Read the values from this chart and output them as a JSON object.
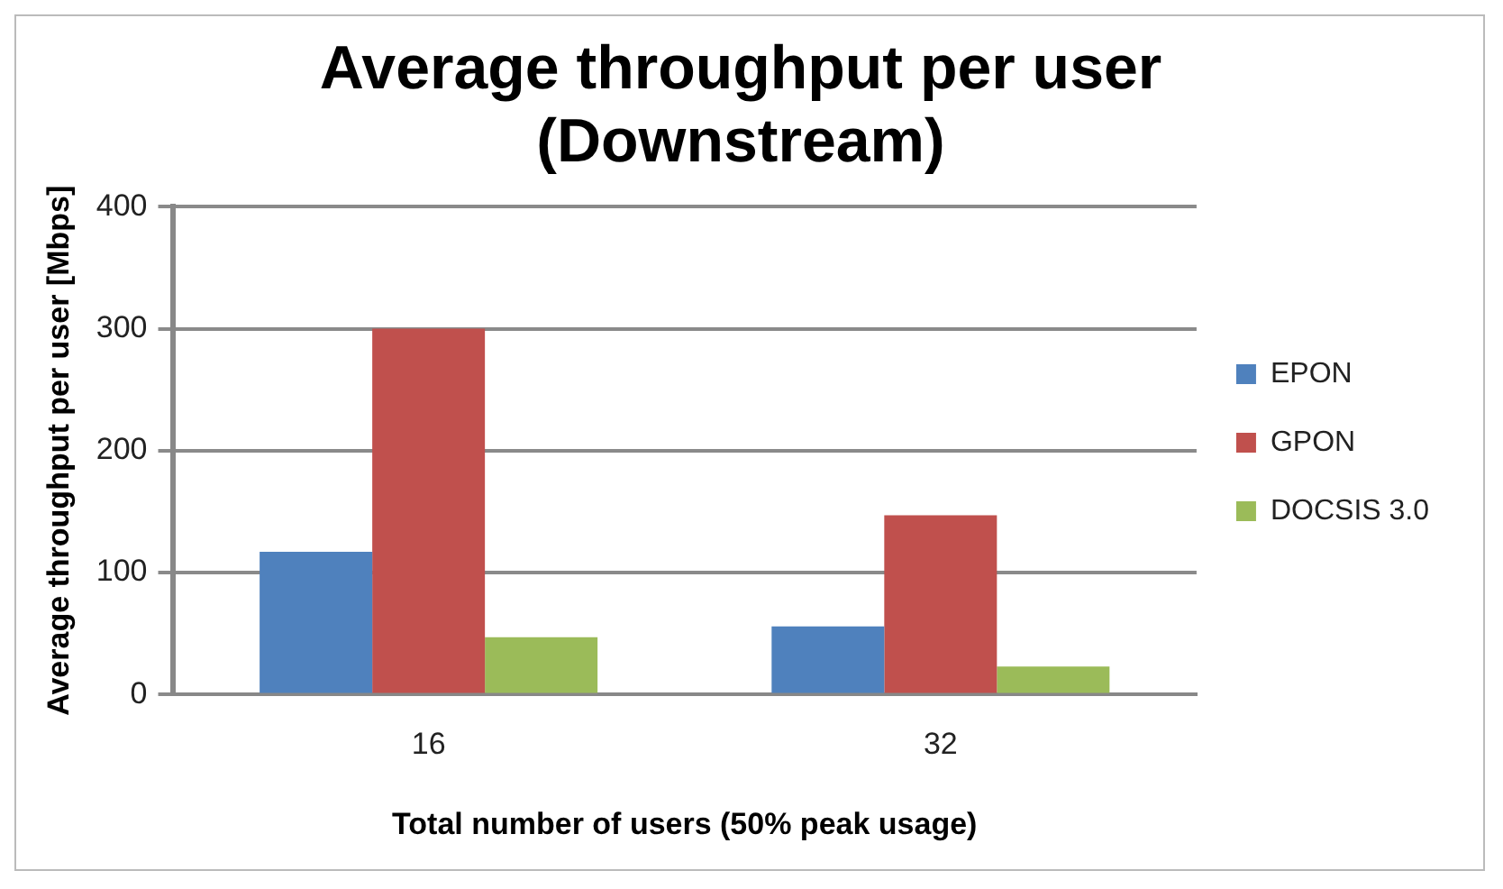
{
  "chart_data": {
    "type": "bar",
    "title": "Average throughput per user (Downstream)",
    "xlabel": "Total number of users (50% peak usage)",
    "ylabel": "Average throughput per user [Mbps]",
    "categories": [
      "16",
      "32"
    ],
    "series": [
      {
        "name": "EPON",
        "color": "#4f81bd",
        "values": [
          117,
          56
        ]
      },
      {
        "name": "GPON",
        "color": "#c0504d",
        "values": [
          300,
          147
        ]
      },
      {
        "name": "DOCSIS 3.0",
        "color": "#9bbb59",
        "values": [
          47,
          23
        ]
      }
    ],
    "ylim": [
      0,
      400
    ],
    "yticks": [
      0,
      100,
      200,
      300,
      400
    ],
    "grid": "y",
    "legend": "right"
  }
}
